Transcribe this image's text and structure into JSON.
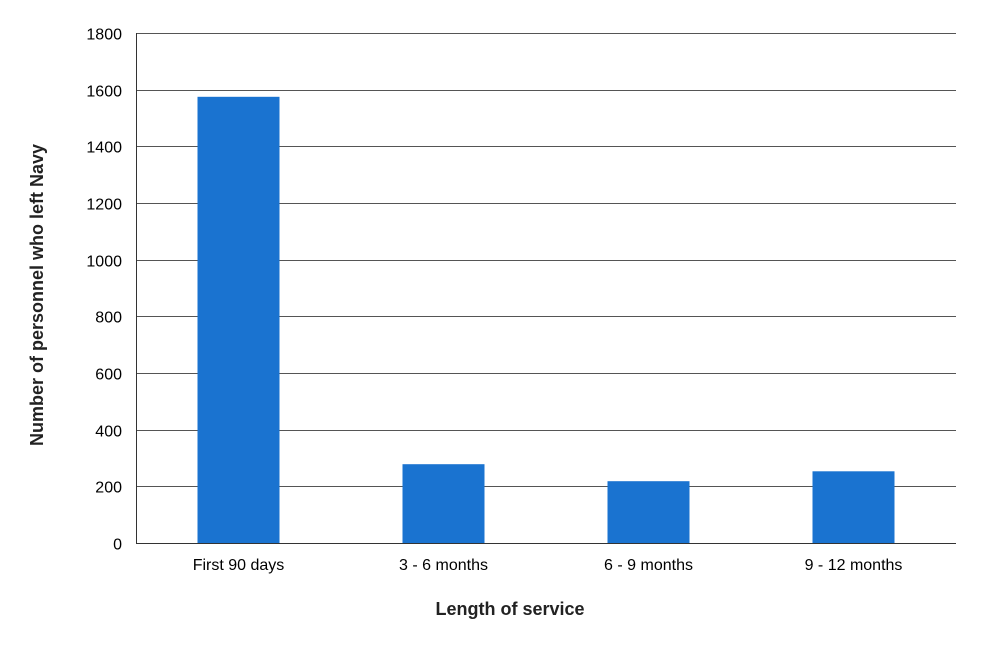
{
  "chart_data": {
    "type": "bar",
    "title": "",
    "xlabel": "Length of service",
    "ylabel": "Number of personnel who left Navy",
    "categories": [
      "First 90 days",
      "3 - 6 months",
      "6 - 9 months",
      "9 - 12 months"
    ],
    "series": [
      {
        "values": [
          1575,
          278,
          218,
          253
        ],
        "color": "#1a73d0"
      }
    ],
    "ylim": [
      0,
      1800
    ],
    "yticks": [
      0,
      200,
      400,
      600,
      800,
      1000,
      1200,
      1400,
      1600,
      1800
    ],
    "grid": true,
    "legend": "none",
    "colors": {
      "bar": "#1a73d0",
      "grid": "#555555",
      "axis": "#333333",
      "text": "#000000"
    }
  }
}
